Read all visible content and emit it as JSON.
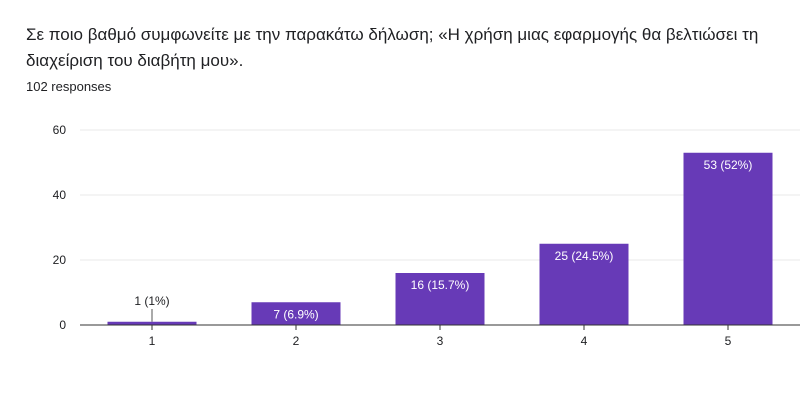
{
  "question": "Σε ποιο βαθμό συμφωνείτε με την παρακάτω δήλωση;  «Η χρήση μιας εφαρμογής θα βελτιώσει τη διαχείριση του διαβήτη μου».",
  "responses_text": "102 responses",
  "colors": {
    "bar": "#673ab7",
    "grid": "#e8e8e8",
    "axis": "#333333"
  },
  "chart_data": {
    "type": "bar",
    "categories": [
      "1",
      "2",
      "3",
      "4",
      "5"
    ],
    "values": [
      1,
      7,
      16,
      25,
      53
    ],
    "data_labels": [
      "1 (1%)",
      "7 (6.9%)",
      "16 (15.7%)",
      "25 (24.5%)",
      "53 (52%)"
    ],
    "yticks": [
      0,
      20,
      40,
      60
    ],
    "ylim": [
      0,
      60
    ],
    "grid": true,
    "title": "",
    "xlabel": "",
    "ylabel": ""
  }
}
